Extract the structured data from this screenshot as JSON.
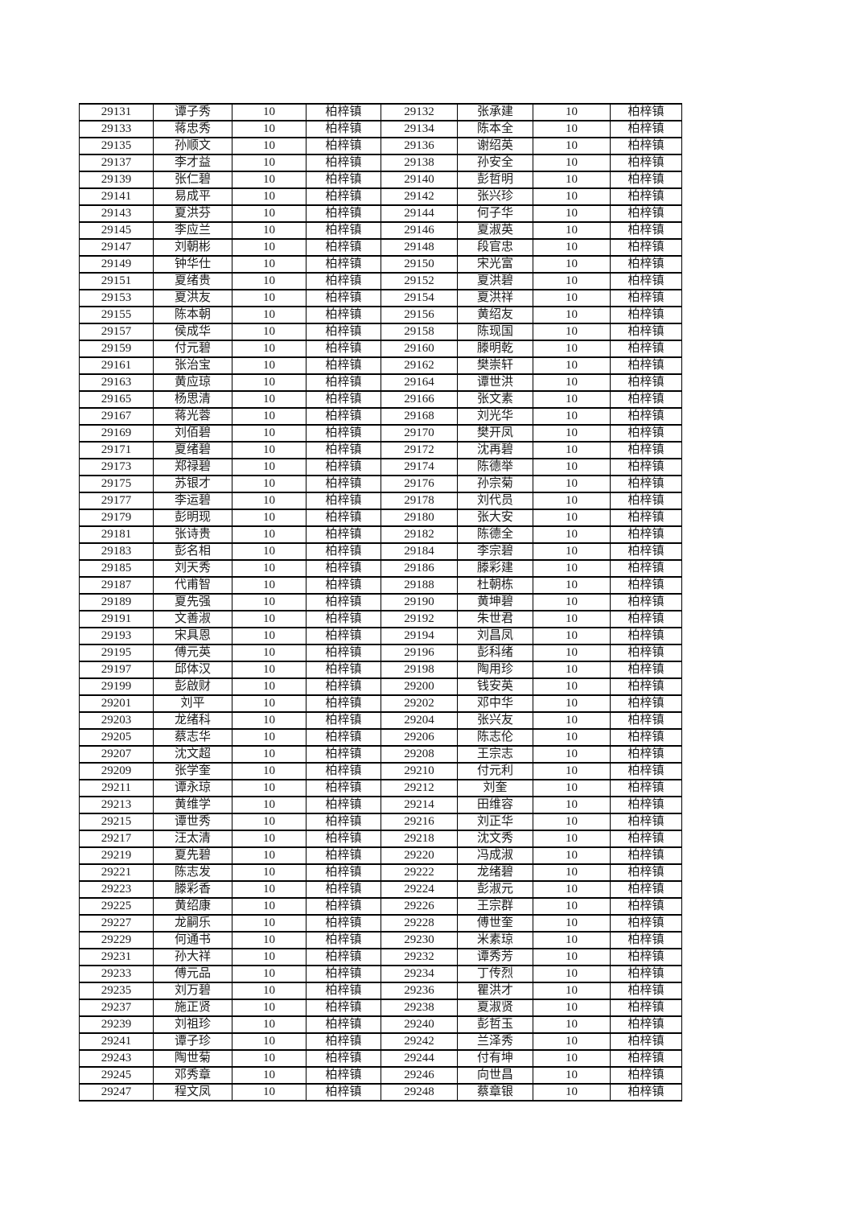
{
  "page": {
    "background": "#ffffff",
    "text_color": "#1b1b1b",
    "border_color": "#000000"
  },
  "table": {
    "rows": [
      [
        "29131",
        "谭子秀",
        "10",
        "柏梓镇",
        "29132",
        "张承建",
        "10",
        "柏梓镇"
      ],
      [
        "29133",
        "蒋忠秀",
        "10",
        "柏梓镇",
        "29134",
        "陈本全",
        "10",
        "柏梓镇"
      ],
      [
        "29135",
        "孙顺文",
        "10",
        "柏梓镇",
        "29136",
        "谢绍英",
        "10",
        "柏梓镇"
      ],
      [
        "29137",
        "李才益",
        "10",
        "柏梓镇",
        "29138",
        "孙安全",
        "10",
        "柏梓镇"
      ],
      [
        "29139",
        "张仁碧",
        "10",
        "柏梓镇",
        "29140",
        "彭哲明",
        "10",
        "柏梓镇"
      ],
      [
        "29141",
        "易成平",
        "10",
        "柏梓镇",
        "29142",
        "张兴珍",
        "10",
        "柏梓镇"
      ],
      [
        "29143",
        "夏洪芬",
        "10",
        "柏梓镇",
        "29144",
        "何子华",
        "10",
        "柏梓镇"
      ],
      [
        "29145",
        "李应兰",
        "10",
        "柏梓镇",
        "29146",
        "夏淑英",
        "10",
        "柏梓镇"
      ],
      [
        "29147",
        "刘朝彬",
        "10",
        "柏梓镇",
        "29148",
        "段官忠",
        "10",
        "柏梓镇"
      ],
      [
        "29149",
        "钟华仕",
        "10",
        "柏梓镇",
        "29150",
        "宋光富",
        "10",
        "柏梓镇"
      ],
      [
        "29151",
        "夏绪贵",
        "10",
        "柏梓镇",
        "29152",
        "夏洪碧",
        "10",
        "柏梓镇"
      ],
      [
        "29153",
        "夏洪友",
        "10",
        "柏梓镇",
        "29154",
        "夏洪祥",
        "10",
        "柏梓镇"
      ],
      [
        "29155",
        "陈本朝",
        "10",
        "柏梓镇",
        "29156",
        "黄绍友",
        "10",
        "柏梓镇"
      ],
      [
        "29157",
        "侯成华",
        "10",
        "柏梓镇",
        "29158",
        "陈现国",
        "10",
        "柏梓镇"
      ],
      [
        "29159",
        "付元碧",
        "10",
        "柏梓镇",
        "29160",
        "滕明乾",
        "10",
        "柏梓镇"
      ],
      [
        "29161",
        "张治宝",
        "10",
        "柏梓镇",
        "29162",
        "樊崇轩",
        "10",
        "柏梓镇"
      ],
      [
        "29163",
        "黄应琼",
        "10",
        "柏梓镇",
        "29164",
        "谭世洪",
        "10",
        "柏梓镇"
      ],
      [
        "29165",
        "杨思清",
        "10",
        "柏梓镇",
        "29166",
        "张文素",
        "10",
        "柏梓镇"
      ],
      [
        "29167",
        "蒋光蓉",
        "10",
        "柏梓镇",
        "29168",
        "刘光华",
        "10",
        "柏梓镇"
      ],
      [
        "29169",
        "刘佰碧",
        "10",
        "柏梓镇",
        "29170",
        "樊开凤",
        "10",
        "柏梓镇"
      ],
      [
        "29171",
        "夏绪碧",
        "10",
        "柏梓镇",
        "29172",
        "沈再碧",
        "10",
        "柏梓镇"
      ],
      [
        "29173",
        "郑禄碧",
        "10",
        "柏梓镇",
        "29174",
        "陈德举",
        "10",
        "柏梓镇"
      ],
      [
        "29175",
        "苏银才",
        "10",
        "柏梓镇",
        "29176",
        "孙宗菊",
        "10",
        "柏梓镇"
      ],
      [
        "29177",
        "李运碧",
        "10",
        "柏梓镇",
        "29178",
        "刘代员",
        "10",
        "柏梓镇"
      ],
      [
        "29179",
        "彭明现",
        "10",
        "柏梓镇",
        "29180",
        "张大安",
        "10",
        "柏梓镇"
      ],
      [
        "29181",
        "张诗贵",
        "10",
        "柏梓镇",
        "29182",
        "陈德全",
        "10",
        "柏梓镇"
      ],
      [
        "29183",
        "彭名相",
        "10",
        "柏梓镇",
        "29184",
        "李宗碧",
        "10",
        "柏梓镇"
      ],
      [
        "29185",
        "刘天秀",
        "10",
        "柏梓镇",
        "29186",
        "滕彩建",
        "10",
        "柏梓镇"
      ],
      [
        "29187",
        "代甫智",
        "10",
        "柏梓镇",
        "29188",
        "杜朝栋",
        "10",
        "柏梓镇"
      ],
      [
        "29189",
        "夏先强",
        "10",
        "柏梓镇",
        "29190",
        "黄坤碧",
        "10",
        "柏梓镇"
      ],
      [
        "29191",
        "文善淑",
        "10",
        "柏梓镇",
        "29192",
        "朱世君",
        "10",
        "柏梓镇"
      ],
      [
        "29193",
        "宋具恩",
        "10",
        "柏梓镇",
        "29194",
        "刘昌凤",
        "10",
        "柏梓镇"
      ],
      [
        "29195",
        "傅元英",
        "10",
        "柏梓镇",
        "29196",
        "彭科绪",
        "10",
        "柏梓镇"
      ],
      [
        "29197",
        "邱体汉",
        "10",
        "柏梓镇",
        "29198",
        "陶用珍",
        "10",
        "柏梓镇"
      ],
      [
        "29199",
        "彭啟财",
        "10",
        "柏梓镇",
        "29200",
        "钱安英",
        "10",
        "柏梓镇"
      ],
      [
        "29201",
        "刘平",
        "10",
        "柏梓镇",
        "29202",
        "邓中华",
        "10",
        "柏梓镇"
      ],
      [
        "29203",
        "龙绪科",
        "10",
        "柏梓镇",
        "29204",
        "张兴友",
        "10",
        "柏梓镇"
      ],
      [
        "29205",
        "蔡志华",
        "10",
        "柏梓镇",
        "29206",
        "陈志伦",
        "10",
        "柏梓镇"
      ],
      [
        "29207",
        "沈文超",
        "10",
        "柏梓镇",
        "29208",
        "王宗志",
        "10",
        "柏梓镇"
      ],
      [
        "29209",
        "张学奎",
        "10",
        "柏梓镇",
        "29210",
        "付元利",
        "10",
        "柏梓镇"
      ],
      [
        "29211",
        "谭永琼",
        "10",
        "柏梓镇",
        "29212",
        "刘奎",
        "10",
        "柏梓镇"
      ],
      [
        "29213",
        "黄维学",
        "10",
        "柏梓镇",
        "29214",
        "田维容",
        "10",
        "柏梓镇"
      ],
      [
        "29215",
        "谭世秀",
        "10",
        "柏梓镇",
        "29216",
        "刘正华",
        "10",
        "柏梓镇"
      ],
      [
        "29217",
        "汪太清",
        "10",
        "柏梓镇",
        "29218",
        "沈文秀",
        "10",
        "柏梓镇"
      ],
      [
        "29219",
        "夏先碧",
        "10",
        "柏梓镇",
        "29220",
        "冯成淑",
        "10",
        "柏梓镇"
      ],
      [
        "29221",
        "陈志发",
        "10",
        "柏梓镇",
        "29222",
        "龙绪碧",
        "10",
        "柏梓镇"
      ],
      [
        "29223",
        "滕彩香",
        "10",
        "柏梓镇",
        "29224",
        "彭淑元",
        "10",
        "柏梓镇"
      ],
      [
        "29225",
        "黄绍康",
        "10",
        "柏梓镇",
        "29226",
        "王宗群",
        "10",
        "柏梓镇"
      ],
      [
        "29227",
        "龙嗣乐",
        "10",
        "柏梓镇",
        "29228",
        "傅世奎",
        "10",
        "柏梓镇"
      ],
      [
        "29229",
        "何通书",
        "10",
        "柏梓镇",
        "29230",
        "米素琼",
        "10",
        "柏梓镇"
      ],
      [
        "29231",
        "孙大祥",
        "10",
        "柏梓镇",
        "29232",
        "谭秀芳",
        "10",
        "柏梓镇"
      ],
      [
        "29233",
        "傅元品",
        "10",
        "柏梓镇",
        "29234",
        "丁传烈",
        "10",
        "柏梓镇"
      ],
      [
        "29235",
        "刘万碧",
        "10",
        "柏梓镇",
        "29236",
        "瞿洪才",
        "10",
        "柏梓镇"
      ],
      [
        "29237",
        "施正贤",
        "10",
        "柏梓镇",
        "29238",
        "夏淑贤",
        "10",
        "柏梓镇"
      ],
      [
        "29239",
        "刘祖珍",
        "10",
        "柏梓镇",
        "29240",
        "彭哲玉",
        "10",
        "柏梓镇"
      ],
      [
        "29241",
        "谭子珍",
        "10",
        "柏梓镇",
        "29242",
        "兰泽秀",
        "10",
        "柏梓镇"
      ],
      [
        "29243",
        "陶世菊",
        "10",
        "柏梓镇",
        "29244",
        "付有坤",
        "10",
        "柏梓镇"
      ],
      [
        "29245",
        "邓秀章",
        "10",
        "柏梓镇",
        "29246",
        "向世昌",
        "10",
        "柏梓镇"
      ],
      [
        "29247",
        "程文凤",
        "10",
        "柏梓镇",
        "29248",
        "蔡章银",
        "10",
        "柏梓镇"
      ]
    ]
  }
}
